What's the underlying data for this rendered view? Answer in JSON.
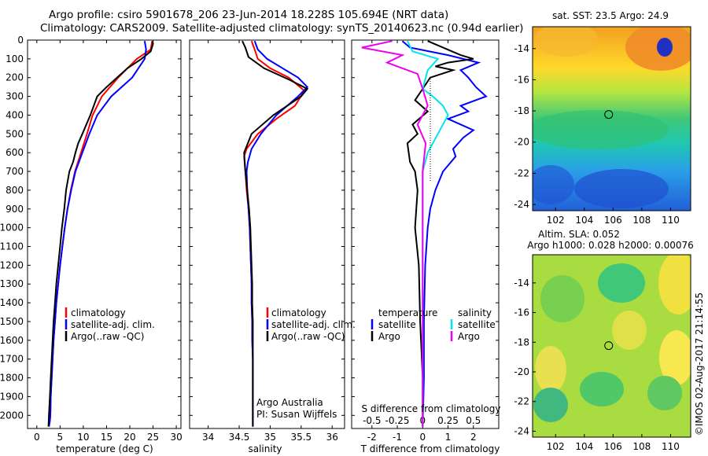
{
  "header": {
    "title_line1": "Argo profile: csiro 5901678_206 23-Jun-2014 18.228S 105.694E (NRT data)",
    "title_line2": "Climatology: CARS2009. Satellite-adjusted climatology: synTS_20140623.nc (0.94d earlier)"
  },
  "credit": "©IMOS 02-Aug-2017 21:14:55",
  "colors": {
    "climatology": "#ff0000",
    "satellite": "#0000ff",
    "argo": "#000000",
    "salinity_satellite": "#00e5ee",
    "salinity_argo": "#ee00ee"
  },
  "chart_data": [
    {
      "type": "line",
      "id": "temperature_profile",
      "xlabel": "temperature (deg C)",
      "ylabel": "",
      "xlim": [
        -2,
        31
      ],
      "ylim": [
        2070,
        0
      ],
      "xticks": [
        0,
        5,
        10,
        15,
        20,
        25,
        30
      ],
      "yticks": [
        0,
        100,
        200,
        300,
        400,
        500,
        600,
        700,
        800,
        900,
        1000,
        1100,
        1200,
        1300,
        1400,
        1500,
        1600,
        1700,
        1800,
        1900,
        2000
      ],
      "legend": [
        "climatology",
        "satellite-adj. clim.",
        "Argo(..raw -QC)"
      ],
      "series": [
        {
          "name": "climatology",
          "color": "#ff0000",
          "x": [
            24.8,
            24.5,
            21.5,
            17.5,
            14,
            12,
            10.8,
            9.5,
            8.2,
            7.3,
            6.6,
            6.0,
            5.5,
            5.0,
            4.6,
            4.2,
            3.9,
            3.6,
            3.4,
            3.2,
            3.0,
            2.9,
            2.8,
            2.7,
            2.6
          ],
          "y": [
            5,
            50,
            100,
            200,
            300,
            400,
            500,
            600,
            700,
            800,
            900,
            1000,
            1100,
            1200,
            1300,
            1400,
            1500,
            1600,
            1700,
            1800,
            1900,
            2000,
            2030,
            2045,
            2060
          ]
        },
        {
          "name": "satellite-adj. clim.",
          "color": "#0000ff",
          "x": [
            23.2,
            23.5,
            23.2,
            20.5,
            16,
            13,
            11.3,
            9.8,
            8.3,
            7.4,
            6.6,
            6.0,
            5.5,
            5.0,
            4.6,
            4.2,
            3.9,
            3.6,
            3.4,
            3.2,
            3.0,
            2.9,
            2.8,
            2.7,
            2.6
          ],
          "y": [
            5,
            50,
            100,
            200,
            300,
            400,
            500,
            600,
            700,
            800,
            900,
            1000,
            1100,
            1200,
            1300,
            1400,
            1500,
            1600,
            1700,
            1800,
            1900,
            2000,
            2030,
            2045,
            2060
          ]
        },
        {
          "name": "Argo(..raw -QC)",
          "color": "#000000",
          "x": [
            24.9,
            25.0,
            24.5,
            22.5,
            19.5,
            15,
            13,
            11.5,
            9.8,
            8.9,
            8.3,
            7.8,
            7.0,
            6.3,
            5.9,
            5.4,
            5.0,
            4.6,
            4.2,
            3.9,
            3.6,
            3.4,
            3.2,
            3.0,
            2.8,
            2.6,
            2.5
          ],
          "y": [
            5,
            20,
            60,
            100,
            150,
            250,
            300,
            400,
            500,
            550,
            600,
            650,
            700,
            800,
            900,
            1000,
            1100,
            1200,
            1300,
            1400,
            1500,
            1600,
            1700,
            1800,
            1900,
            2000,
            2060
          ]
        }
      ]
    },
    {
      "type": "line",
      "id": "salinity_profile",
      "xlabel": "salinity",
      "ylabel": "",
      "xlim": [
        33.7,
        36.2
      ],
      "ylim": [
        2070,
        0
      ],
      "xticks": [
        34,
        34.5,
        35,
        35.5,
        36
      ],
      "legend": [
        "climatology",
        "satellite-adj. clim.",
        "Argo(..raw -QC)"
      ],
      "annotations": [
        "Argo Australia",
        "PI: Susan Wijffels"
      ],
      "series": [
        {
          "name": "climatology",
          "color": "#ff0000",
          "x": [
            34.7,
            34.75,
            34.8,
            35.0,
            35.3,
            35.55,
            35.4,
            35.1,
            34.8,
            34.62,
            34.58,
            34.6,
            34.62,
            34.65,
            34.67,
            34.68,
            34.69,
            34.7,
            34.7,
            34.71,
            34.71,
            34.72,
            34.72,
            34.72,
            34.72
          ],
          "y": [
            5,
            50,
            100,
            150,
            200,
            270,
            350,
            420,
            500,
            580,
            620,
            700,
            800,
            900,
            1000,
            1100,
            1200,
            1300,
            1400,
            1500,
            1600,
            1700,
            1800,
            1900,
            2060
          ]
        },
        {
          "name": "satellite-adj. clim.",
          "color": "#0000ff",
          "x": [
            34.75,
            34.8,
            34.95,
            35.2,
            35.45,
            35.6,
            35.45,
            35.1,
            34.85,
            34.7,
            34.64,
            34.62,
            34.63,
            34.65,
            34.67,
            34.68,
            34.69,
            34.7,
            34.7,
            34.71,
            34.71,
            34.72,
            34.72,
            34.72,
            34.72
          ],
          "y": [
            5,
            50,
            100,
            150,
            200,
            250,
            300,
            400,
            500,
            580,
            650,
            700,
            800,
            900,
            1000,
            1100,
            1200,
            1300,
            1400,
            1500,
            1600,
            1700,
            1800,
            1900,
            2060
          ]
        },
        {
          "name": "Argo(..raw -QC)",
          "color": "#000000",
          "x": [
            34.55,
            34.6,
            34.65,
            34.9,
            35.3,
            35.6,
            35.5,
            35.05,
            34.7,
            34.58,
            34.6,
            34.63,
            34.66,
            34.68,
            34.69,
            34.7,
            34.71,
            34.71,
            34.72,
            34.72,
            34.72,
            34.72,
            34.72
          ],
          "y": [
            5,
            40,
            90,
            150,
            210,
            260,
            300,
            400,
            500,
            600,
            700,
            800,
            900,
            1000,
            1100,
            1200,
            1300,
            1400,
            1500,
            1600,
            1700,
            1800,
            2060
          ]
        }
      ]
    },
    {
      "type": "line",
      "id": "difference_from_climatology",
      "xlabel": "T difference from climatology",
      "xlabel_top": "S difference from climatology",
      "xlim": [
        -2.8,
        3.0
      ],
      "xlim_top": [
        -0.7,
        0.75
      ],
      "ylim": [
        2070,
        0
      ],
      "xticks": [
        -2,
        -1,
        0,
        1,
        2
      ],
      "xticks_top": [
        -0.5,
        -0.25,
        0,
        0.25,
        0.5
      ],
      "legend_temperature": [
        "temperature",
        "satellite",
        "Argo"
      ],
      "legend_salinity": [
        "salinity",
        "satellite",
        "Argo"
      ],
      "series": [
        {
          "name": "temperature satellite",
          "color": "#0000ff",
          "x": [
            -0.8,
            -0.5,
            1.0,
            2.2,
            1.5,
            1.8,
            2.1,
            2.5,
            1.5,
            1.8,
            1.0,
            2.0,
            1.6,
            1.2,
            1.3,
            0.8,
            0.5,
            0.3,
            0.2,
            0.1,
            0.05,
            0.05,
            0.0
          ],
          "y": [
            5,
            40,
            80,
            120,
            160,
            200,
            250,
            300,
            350,
            380,
            420,
            480,
            520,
            580,
            620,
            700,
            800,
            900,
            1000,
            1200,
            1500,
            1800,
            2060
          ]
        },
        {
          "name": "temperature Argo",
          "color": "#000000",
          "x": [
            0.2,
            1.5,
            2.0,
            1.0,
            0.5,
            1.2,
            0.3,
            0.0,
            -0.3,
            0.2,
            -0.4,
            -0.2,
            -0.6,
            -0.5,
            -0.3,
            -0.2,
            -0.3,
            -0.15,
            -0.1,
            0.0,
            0.0
          ],
          "y": [
            5,
            80,
            100,
            120,
            140,
            160,
            200,
            260,
            320,
            380,
            450,
            500,
            550,
            650,
            700,
            800,
            1000,
            1200,
            1500,
            1800,
            2060
          ]
        },
        {
          "name": "salinity satellite",
          "color": "#00e5ee",
          "x": [
            -0.15,
            -0.1,
            0.15,
            0.05,
            0.0,
            0.1,
            0.2,
            0.25,
            0.15,
            0.05,
            0.0,
            0.0,
            0.0,
            0.0,
            0.0
          ],
          "y": [
            5,
            60,
            100,
            160,
            260,
            300,
            350,
            400,
            500,
            600,
            700,
            900,
            1200,
            1600,
            2060
          ]
        },
        {
          "name": "salinity Argo",
          "color": "#ee00ee",
          "x": [
            -0.3,
            -0.6,
            -0.2,
            -0.35,
            -0.05,
            0.0,
            0.05,
            -0.05,
            0.03,
            0.0,
            0.0,
            0.0,
            0.0
          ],
          "y": [
            5,
            40,
            80,
            120,
            180,
            260,
            350,
            450,
            550,
            700,
            900,
            1200,
            2060
          ]
        }
      ]
    },
    {
      "type": "heatmap",
      "id": "sst_map",
      "title": "sat. SST: 23.5  Argo: 24.9",
      "xticks": [
        102,
        104,
        106,
        108,
        110
      ],
      "yticks": [
        -14,
        -16,
        -18,
        -20,
        -22,
        -24
      ],
      "xlim": [
        100.4,
        111.4
      ],
      "ylim": [
        -24.4,
        -12.6
      ],
      "marker": {
        "lon": 105.694,
        "lat": -18.228
      }
    },
    {
      "type": "heatmap",
      "id": "sla_map",
      "title_line1": "Altim. SLA: 0.052",
      "title_line2": "Argo h1000: 0.028  h2000: 0.00076",
      "xticks": [
        102,
        104,
        106,
        108,
        110
      ],
      "yticks": [
        -14,
        -16,
        -18,
        -20,
        -22,
        -24
      ],
      "xlim": [
        100.4,
        111.4
      ],
      "ylim": [
        -24.4,
        -12.1
      ],
      "marker": {
        "lon": 105.694,
        "lat": -18.228
      }
    }
  ]
}
